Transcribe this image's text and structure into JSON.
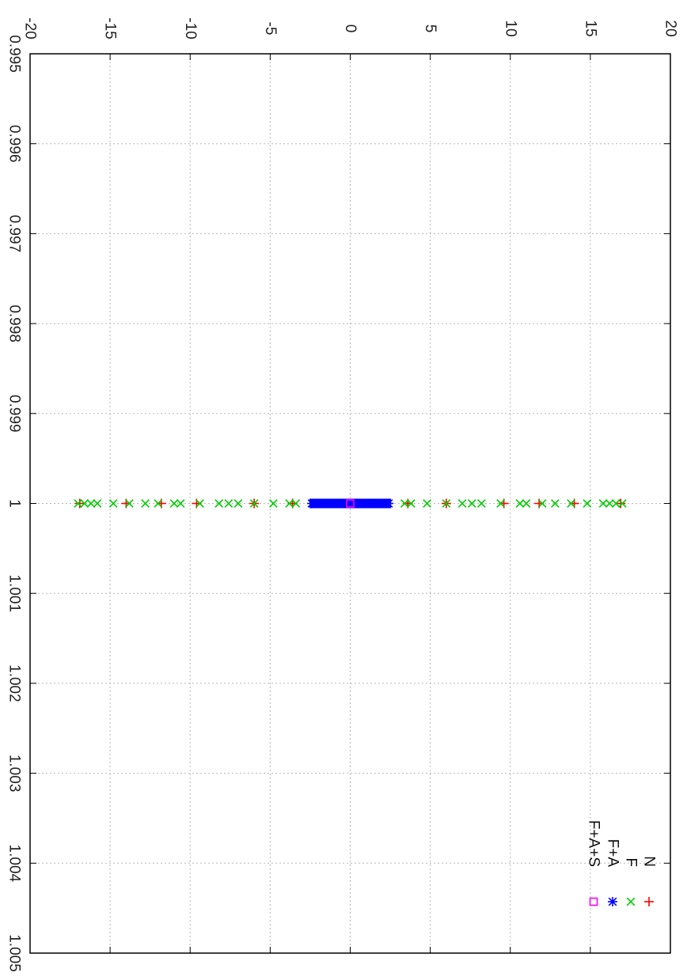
{
  "chart_data": {
    "type": "scatter",
    "orientation": "rotated-90-clockwise",
    "title": "",
    "xlabel": "",
    "ylabel": "",
    "xlim": [
      0.995,
      1.005
    ],
    "ylim": [
      -20,
      20
    ],
    "x_ticks": [
      {
        "value": 0.995,
        "label": "0.995"
      },
      {
        "value": 0.996,
        "label": "0.996"
      },
      {
        "value": 0.997,
        "label": "0.997"
      },
      {
        "value": 0.998,
        "label": "0.998"
      },
      {
        "value": 0.999,
        "label": "0.999"
      },
      {
        "value": 1.0,
        "label": "1"
      },
      {
        "value": 1.001,
        "label": "1.001"
      },
      {
        "value": 1.002,
        "label": "1.002"
      },
      {
        "value": 1.003,
        "label": "1.003"
      },
      {
        "value": 1.004,
        "label": "1.004"
      },
      {
        "value": 1.005,
        "label": "1.005"
      }
    ],
    "y_ticks": [
      {
        "value": -20,
        "label": "-20"
      },
      {
        "value": -15,
        "label": "-15"
      },
      {
        "value": -10,
        "label": "-10"
      },
      {
        "value": -5,
        "label": "-5"
      },
      {
        "value": 0,
        "label": "0"
      },
      {
        "value": 5,
        "label": "5"
      },
      {
        "value": 10,
        "label": "10"
      },
      {
        "value": 15,
        "label": "15"
      },
      {
        "value": 20,
        "label": "20"
      }
    ],
    "grid": true,
    "legend_position": "top-right",
    "series": [
      {
        "name": "N",
        "color": "#ff0000",
        "marker": "plus",
        "points": [
          [
            1.0,
            -16.9
          ],
          [
            1.0,
            -14.0
          ],
          [
            1.0,
            -11.8
          ],
          [
            1.0,
            -9.6
          ],
          [
            1.0,
            -6.0
          ],
          [
            1.0,
            -3.6
          ],
          [
            1.0,
            3.6
          ],
          [
            1.0,
            6.0
          ],
          [
            1.0,
            9.6
          ],
          [
            1.0,
            11.8
          ],
          [
            1.0,
            14.0
          ],
          [
            1.0,
            16.9
          ]
        ]
      },
      {
        "name": "F",
        "color": "#00cc00",
        "marker": "cross",
        "points": [
          [
            1.0,
            -17.0
          ],
          [
            1.0,
            -16.6
          ],
          [
            1.0,
            -16.2
          ],
          [
            1.0,
            -15.8
          ],
          [
            1.0,
            -14.8
          ],
          [
            1.0,
            -13.8
          ],
          [
            1.0,
            -12.8
          ],
          [
            1.0,
            -12.0
          ],
          [
            1.0,
            -11.0
          ],
          [
            1.0,
            -10.6
          ],
          [
            1.0,
            -9.4
          ],
          [
            1.0,
            -8.2
          ],
          [
            1.0,
            -7.6
          ],
          [
            1.0,
            -7.0
          ],
          [
            1.0,
            -6.0
          ],
          [
            1.0,
            -4.8
          ],
          [
            1.0,
            -3.8
          ],
          [
            1.0,
            -3.4
          ],
          [
            1.0,
            3.4
          ],
          [
            1.0,
            3.8
          ],
          [
            1.0,
            4.8
          ],
          [
            1.0,
            6.0
          ],
          [
            1.0,
            7.0
          ],
          [
            1.0,
            7.6
          ],
          [
            1.0,
            8.2
          ],
          [
            1.0,
            9.4
          ],
          [
            1.0,
            10.6
          ],
          [
            1.0,
            11.0
          ],
          [
            1.0,
            12.0
          ],
          [
            1.0,
            12.8
          ],
          [
            1.0,
            13.8
          ],
          [
            1.0,
            14.8
          ],
          [
            1.0,
            15.8
          ],
          [
            1.0,
            16.2
          ],
          [
            1.0,
            16.6
          ],
          [
            1.0,
            17.0
          ]
        ]
      },
      {
        "name": "F+A",
        "color": "#0000ff",
        "marker": "star",
        "points": [
          [
            1.0,
            -2.4
          ],
          [
            1.0,
            -2.0
          ],
          [
            1.0,
            -1.6
          ],
          [
            1.0,
            -1.2
          ],
          [
            1.0,
            -0.8
          ],
          [
            1.0,
            -0.4
          ],
          [
            1.0,
            0.0
          ],
          [
            1.0,
            0.4
          ],
          [
            1.0,
            0.8
          ],
          [
            1.0,
            1.2
          ],
          [
            1.0,
            1.6
          ],
          [
            1.0,
            2.0
          ],
          [
            1.0,
            2.4
          ]
        ]
      },
      {
        "name": "F+A+S",
        "color": "#ff00ff",
        "marker": "square",
        "points": [
          [
            1.0,
            0.0
          ]
        ]
      }
    ]
  }
}
